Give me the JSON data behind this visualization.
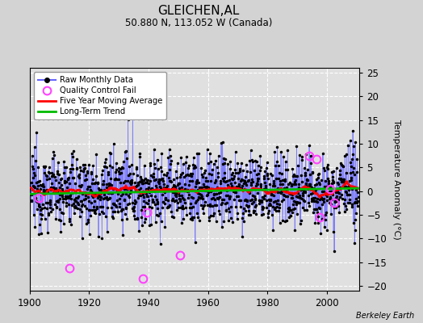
{
  "title": "GLEICHEN,AL",
  "subtitle": "50.880 N, 113.052 W (Canada)",
  "ylabel": "Temperature Anomaly (°C)",
  "credit": "Berkeley Earth",
  "xlim": [
    1900,
    2011
  ],
  "ylim": [
    -21,
    26
  ],
  "yticks": [
    -20,
    -15,
    -10,
    -5,
    0,
    5,
    10,
    15,
    20,
    25
  ],
  "xticks": [
    1900,
    1920,
    1940,
    1960,
    1980,
    2000
  ],
  "bg_color": "#d3d3d3",
  "plot_bg_color": "#e0e0e0",
  "grid_color": "#ffffff",
  "raw_line_color": "#6666ff",
  "raw_dot_color": "#000000",
  "moving_avg_color": "#ff0000",
  "trend_color": "#00bb00",
  "qc_fail_color": "#ff44ff",
  "seed": 12345,
  "n_years": 110,
  "start_year": 1900.5,
  "qc_fail_points": [
    [
      1913.5,
      -16.2
    ],
    [
      1938.2,
      -18.5
    ],
    [
      1939.5,
      -4.5
    ],
    [
      1950.5,
      -13.5
    ],
    [
      1994.0,
      7.5
    ],
    [
      1996.5,
      6.8
    ],
    [
      1997.5,
      -5.5
    ],
    [
      2001.0,
      0.5
    ],
    [
      2002.5,
      -2.5
    ],
    [
      1903.0,
      -1.5
    ]
  ],
  "trend_y": [
    -0.6,
    0.6
  ]
}
